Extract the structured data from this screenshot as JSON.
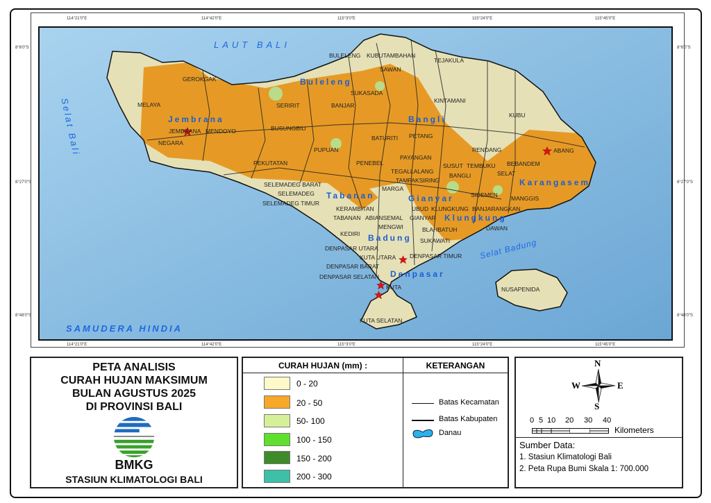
{
  "map": {
    "lon_ticks": [
      "114°21'0\"E",
      "114°42'0\"E",
      "115°3'0\"E",
      "115°24'0\"E",
      "115°45'0\"E"
    ],
    "lat_ticks": [
      "8°6'0\"S",
      "8°27'0\"S",
      "8°48'0\"S"
    ],
    "seas": {
      "north": "LAUT BALI",
      "west": "Selat Bali",
      "south": "SAMUDERA HINDIA",
      "southeast": "Selat Badung"
    },
    "regencies": [
      "Jembrana",
      "Buleleng",
      "Bangli",
      "Tabanan",
      "Gianyar",
      "Karangasem",
      "Klungkung",
      "Badung",
      "Denpasar"
    ],
    "districts": [
      "GEROKGAK",
      "MELAYA",
      "JEMBRANA",
      "MENDOYO",
      "NEGARA",
      "SERIRIT",
      "BUSUNGBIU",
      "BANJAR",
      "BULELENG",
      "KUBUTAMBAHAN",
      "SAWAN",
      "TEJAKULA",
      "SUKASADA",
      "KINTAMANI",
      "KUBU",
      "PUPUAN",
      "BATURITI",
      "PETANG",
      "PEKUTATAN",
      "PENEBEL",
      "PAYANGAN",
      "RENDANG",
      "ABANG",
      "SUSUT",
      "TEMBUKU",
      "BEBANDEM",
      "TEGALLALANG",
      "BANGLI",
      "SELAT",
      "TAMPAKSIRING",
      "SELEMADEG BARAT",
      "MARGA",
      "SELEMADEG",
      "SIDEMEN",
      "MANGGIS",
      "SELEMADEG TIMUR",
      "KERAMBITAN",
      "UBUD",
      "BANJARANGKAN",
      "KLUNGKUNG",
      "TABANAN",
      "ABIANSEMAL",
      "GIANYAR",
      "MENGWI",
      "BLAHBATUH",
      "KEDIRI",
      "SUKAWATI",
      "DENPASAR UTARA",
      "KUTA UTARA",
      "DENPASAR TIMUR",
      "DENPASAR BARAT",
      "DENPASAR SELATAN",
      "KUTA",
      "NUSAPENIDA",
      "KUTA SELATAN",
      "DAWAN"
    ],
    "colors": {
      "sea": "#7fb6dc",
      "rain_0_20": "#e9e3b8",
      "rain_20_50": "#e6951f",
      "rain_50_100": "#b9dc8a",
      "station_star": "#e11111"
    }
  },
  "title_box": {
    "lines": [
      "PETA ANALISIS",
      "CURAH HUJAN MAKSIMUM",
      "BULAN AGUSTUS 2025",
      "DI PROVINSI BALI"
    ],
    "logo_text": "BMKG",
    "org": "STASIUN KLIMATOLOGI BALI"
  },
  "legend": {
    "header": "CURAH HUJAN (mm) :",
    "classes": [
      {
        "label": "0 - 20",
        "color": "#fdf9c9"
      },
      {
        "label": "20 - 50",
        "color": "#f7a829"
      },
      {
        "label": "50- 100",
        "color": "#d6f09a"
      },
      {
        "label": "100 - 150",
        "color": "#5fe02d"
      },
      {
        "label": "150 - 200",
        "color": "#3f8a2a"
      },
      {
        "label": "200 - 300",
        "color": "#3ec0a8"
      }
    ]
  },
  "keterangan": {
    "header": "KETERANGAN",
    "items": [
      "Batas Kecamatan",
      "Batas Kabupaten",
      "Danau"
    ]
  },
  "scale": {
    "ticks": [
      "0",
      "5",
      "10",
      "20",
      "30",
      "40"
    ],
    "unit": "Kilometers"
  },
  "compass": {
    "n": "N",
    "s": "S",
    "e": "E",
    "w": "W"
  },
  "source": {
    "heading": "Sumber Data:",
    "items": [
      "1. Stasiun Klimatologi Bali",
      "2. Peta Rupa Bumi Skala 1: 700.000"
    ]
  }
}
